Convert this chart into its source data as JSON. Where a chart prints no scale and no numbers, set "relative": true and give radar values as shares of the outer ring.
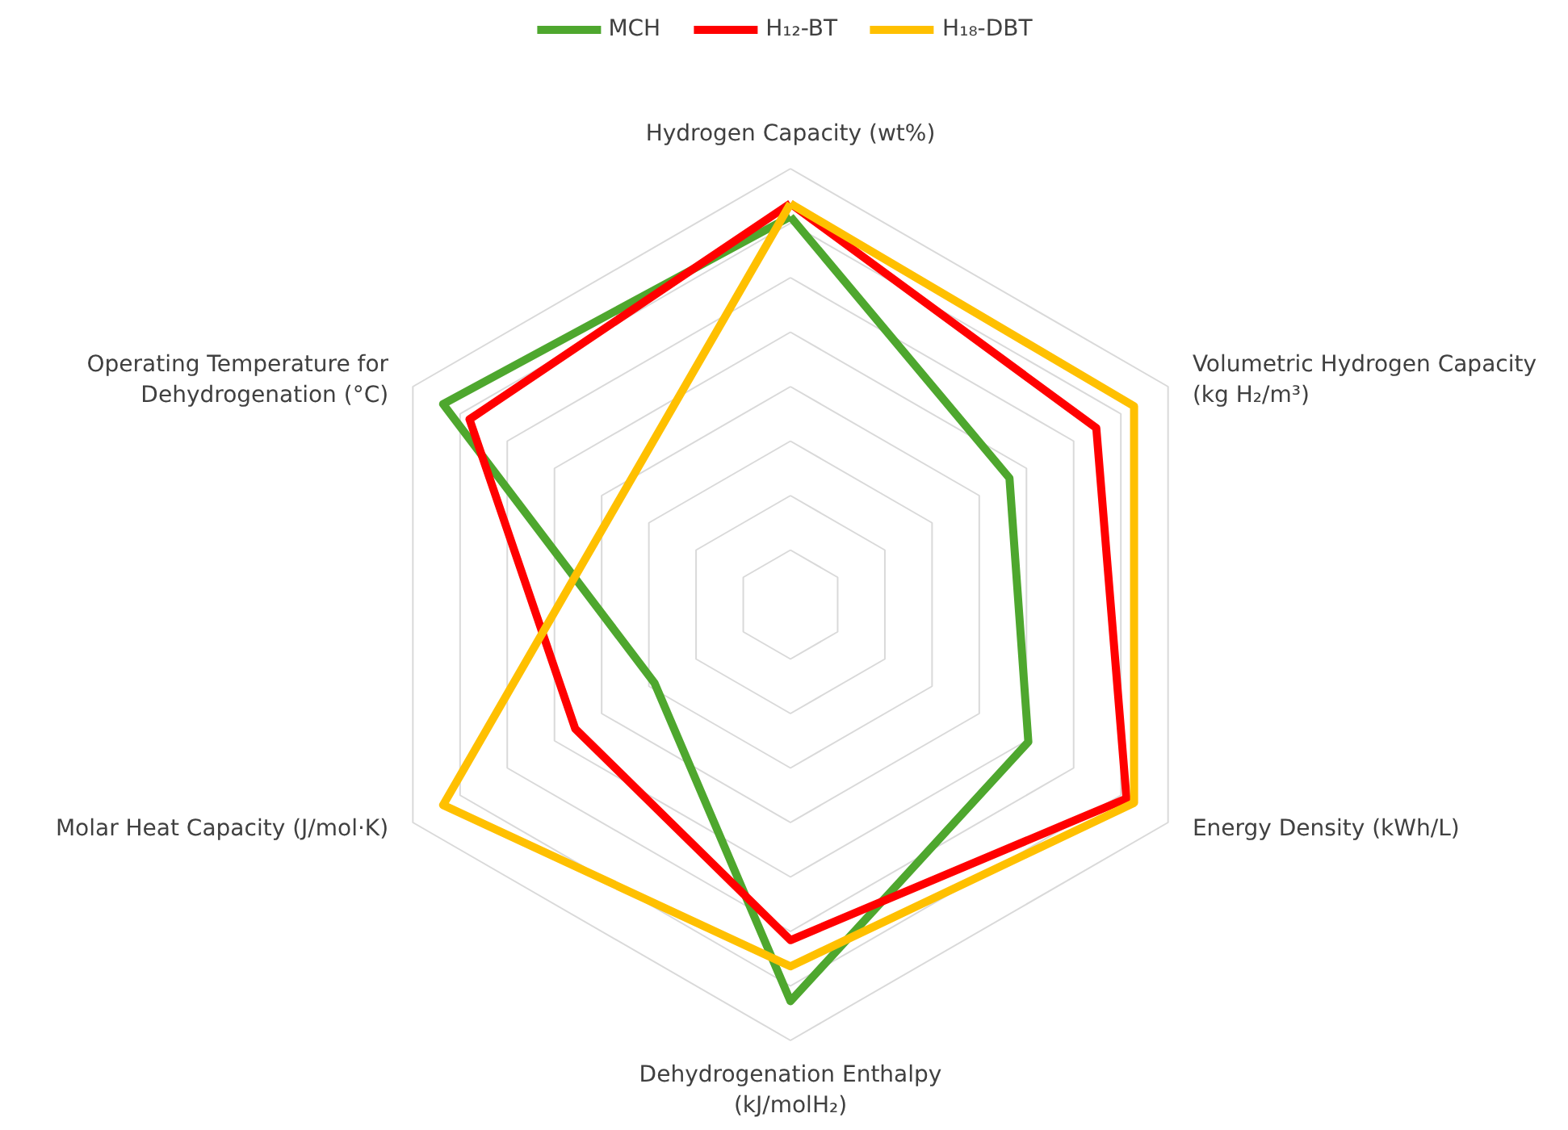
{
  "chart_data": {
    "type": "radar",
    "relative": true,
    "grid": true,
    "legend": "top",
    "categories": [
      "Hydrogen Capacity (wt%)",
      "Volumetric Hydrogen Capacity (kg H₂/m³)",
      "Energy Density (kWh/L)",
      "Dehydrogenation Enthalpy (kJ/molH₂)",
      "Molar Heat Capacity (J/mol·K)",
      "Operating Temperature for Dehydrogenation (°C)"
    ],
    "series": [
      {
        "name": "MCH",
        "color": "#4ea72e",
        "values": [
          0.89,
          0.58,
          0.63,
          0.91,
          0.36,
          0.92
        ]
      },
      {
        "name": "H₁₂-BT",
        "color": "#ff0000",
        "values": [
          0.92,
          0.81,
          0.89,
          0.77,
          0.57,
          0.85
        ]
      },
      {
        "name": "H₁₈-DBT",
        "color": "#ffc000",
        "values": [
          0.92,
          0.91,
          0.91,
          0.83,
          0.92,
          null
        ]
      }
    ]
  }
}
